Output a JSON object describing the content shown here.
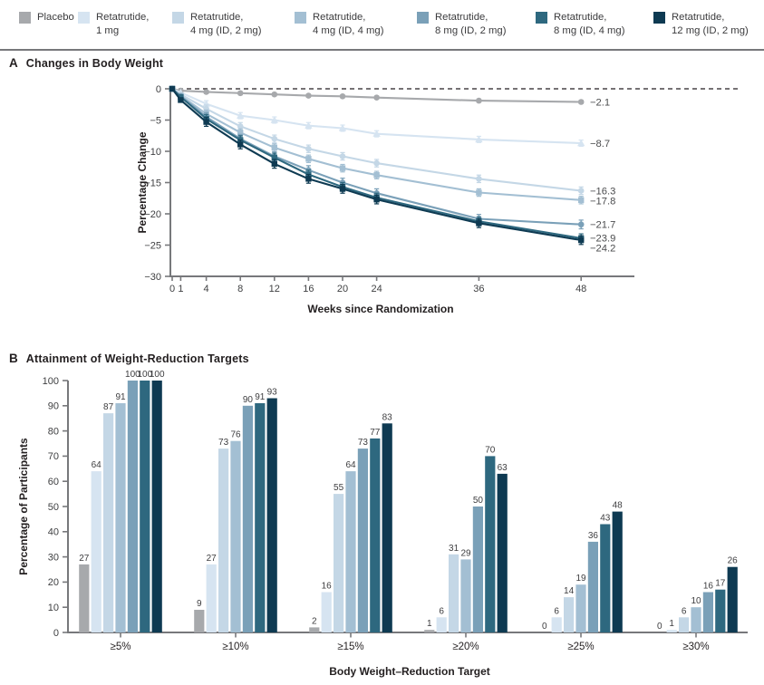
{
  "legend": {
    "items": [
      {
        "line1": "Placebo",
        "line2": "",
        "color": "#a7a9ac"
      },
      {
        "line1": "Retatrutide,",
        "line2": "1 mg",
        "color": "#d6e4f1"
      },
      {
        "line1": "Retatrutide,",
        "line2": "4 mg (ID, 2 mg)",
        "color": "#c4d7e6"
      },
      {
        "line1": "Retatrutide,",
        "line2": "4 mg (ID, 4 mg)",
        "color": "#a3bfd3"
      },
      {
        "line1": "Retatrutide,",
        "line2": "8 mg (ID, 2 mg)",
        "color": "#7aa0b8"
      },
      {
        "line1": "Retatrutide,",
        "line2": "8 mg (ID, 4 mg)",
        "color": "#2e687f"
      },
      {
        "line1": "Retatrutide,",
        "line2": "12 mg (ID, 2 mg)",
        "color": "#0e3a52"
      }
    ]
  },
  "panel_a": {
    "letter": "A",
    "title": "Changes in Body Weight"
  },
  "panel_b": {
    "letter": "B",
    "title": "Attainment of Weight-Reduction Targets"
  },
  "chart_data": [
    {
      "type": "line",
      "panel": "A",
      "title": "Changes in Body Weight",
      "xlabel": "Weeks since Randomization",
      "ylabel": "Percentage Change",
      "x": [
        0,
        1,
        4,
        8,
        12,
        16,
        20,
        24,
        36,
        48
      ],
      "xtick_labels": [
        "0",
        "1",
        "4",
        "8",
        "12",
        "16",
        "20",
        "24",
        "36",
        "48"
      ],
      "ylim": [
        -30,
        0
      ],
      "yticks": [
        0,
        -5,
        -10,
        -15,
        -20,
        -25,
        -30
      ],
      "ytick_labels": [
        "0",
        "−5",
        "−10",
        "−15",
        "−20",
        "−25",
        "−30"
      ],
      "zero_line_dashed": true,
      "legend_position": "top",
      "grid": false,
      "series": [
        {
          "name": "Placebo",
          "color": "#a7a9ac",
          "marker": "circle",
          "err": 0.25,
          "end_label": "−2.1",
          "values": [
            0,
            -0.3,
            -0.5,
            -0.7,
            -0.9,
            -1.1,
            -1.2,
            -1.4,
            -1.9,
            -2.1
          ]
        },
        {
          "name": "Retatrutide, 1 mg",
          "color": "#d6e4f1",
          "marker": "triangle",
          "err": 0.5,
          "end_label": "−8.7",
          "values": [
            0,
            -0.6,
            -2.4,
            -4.3,
            -5.0,
            -5.9,
            -6.3,
            -7.2,
            -8.1,
            -8.7
          ]
        },
        {
          "name": "Retatrutide, 4 mg (ID, 2 mg)",
          "color": "#c4d7e6",
          "marker": "circle",
          "err": 0.6,
          "end_label": "−16.3",
          "values": [
            0,
            -0.9,
            -3.2,
            -6.0,
            -8.0,
            -9.6,
            -10.8,
            -11.9,
            -14.4,
            -16.3
          ]
        },
        {
          "name": "Retatrutide, 4 mg (ID, 4 mg)",
          "color": "#a3bfd3",
          "marker": "square",
          "err": 0.6,
          "end_label": "−17.8",
          "values": [
            0,
            -1.1,
            -4.0,
            -7.0,
            -9.4,
            -11.2,
            -12.7,
            -13.8,
            -16.6,
            -17.8
          ]
        },
        {
          "name": "Retatrutide, 8 mg (ID, 2 mg)",
          "color": "#7aa0b8",
          "marker": "circle",
          "err": 0.7,
          "end_label": "−21.7",
          "values": [
            0,
            -1.2,
            -4.5,
            -8.0,
            -10.8,
            -13.0,
            -15.0,
            -16.7,
            -20.8,
            -21.7
          ]
        },
        {
          "name": "Retatrutide, 8 mg (ID, 4 mg)",
          "color": "#2e687f",
          "marker": "square",
          "err": 0.7,
          "end_label": "−23.9",
          "values": [
            0,
            -1.3,
            -4.8,
            -8.2,
            -11.0,
            -13.7,
            -15.7,
            -17.4,
            -21.2,
            -23.9
          ]
        },
        {
          "name": "Retatrutide, 12 mg (ID, 2 mg)",
          "color": "#0e3a52",
          "marker": "square",
          "err": 0.7,
          "end_label": "−24.2",
          "values": [
            0,
            -1.8,
            -5.3,
            -8.9,
            -12.0,
            -14.4,
            -16.0,
            -17.7,
            -21.5,
            -24.2
          ]
        }
      ]
    },
    {
      "type": "bar",
      "panel": "B",
      "title": "Attainment of Weight-Reduction Targets",
      "xlabel": "Body Weight–Reduction Target",
      "ylabel": "Percentage of Participants",
      "categories": [
        "≥5%",
        "≥10%",
        "≥15%",
        "≥20%",
        "≥25%",
        "≥30%"
      ],
      "ylim": [
        0,
        100
      ],
      "yticks": [
        0,
        10,
        20,
        30,
        40,
        50,
        60,
        70,
        80,
        90,
        100
      ],
      "grid": false,
      "series": [
        {
          "name": "Placebo",
          "color": "#a7a9ac",
          "values": [
            27,
            9,
            2,
            1,
            0,
            0
          ]
        },
        {
          "name": "Retatrutide, 1 mg",
          "color": "#d6e4f1",
          "values": [
            64,
            27,
            16,
            6,
            6,
            1
          ]
        },
        {
          "name": "Retatrutide, 4 mg (ID, 2 mg)",
          "color": "#c4d7e6",
          "values": [
            87,
            73,
            55,
            31,
            14,
            6
          ]
        },
        {
          "name": "Retatrutide, 4 mg (ID, 4 mg)",
          "color": "#a3bfd3",
          "values": [
            91,
            76,
            64,
            29,
            19,
            10
          ]
        },
        {
          "name": "Retatrutide, 8 mg (ID, 2 mg)",
          "color": "#7aa0b8",
          "values": [
            100,
            90,
            73,
            50,
            36,
            16
          ]
        },
        {
          "name": "Retatrutide, 8 mg (ID, 4 mg)",
          "color": "#2e687f",
          "values": [
            100,
            91,
            77,
            70,
            43,
            17
          ]
        },
        {
          "name": "Retatrutide, 12 mg (ID, 2 mg)",
          "color": "#0e3a52",
          "values": [
            100,
            93,
            83,
            63,
            48,
            26
          ]
        }
      ]
    }
  ]
}
